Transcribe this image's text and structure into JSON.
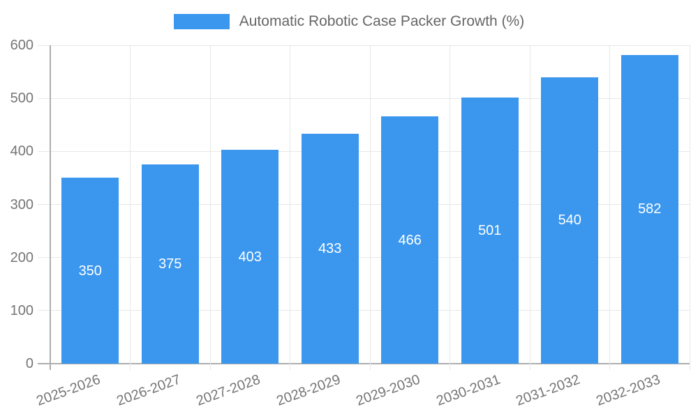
{
  "chart_data": {
    "type": "bar",
    "legend": "Automatic Robotic Case Packer Growth (%)",
    "legend_position": "top",
    "categories": [
      "2025-2026",
      "2026-2027",
      "2027-2028",
      "2028-2029",
      "2029-2030",
      "2030-2031",
      "2031-2032",
      "2032-2033"
    ],
    "values": [
      350,
      375,
      403,
      433,
      466,
      501,
      540,
      582
    ],
    "value_labels": [
      "350",
      "375",
      "403",
      "433",
      "466",
      "501",
      "540",
      "582"
    ],
    "yticks": [
      "0",
      "100",
      "200",
      "300",
      "400",
      "500",
      "600"
    ],
    "ytick_values": [
      0,
      100,
      200,
      300,
      400,
      500,
      600
    ],
    "ylim": [
      0,
      600
    ],
    "xlabel": "",
    "ylabel": "",
    "grid": true,
    "colors": {
      "bar": "#3B97EE",
      "bar_value_text": "#FFFFFF",
      "legend_text": "#666666",
      "axis_text": "#757575",
      "grid_line": "#E7E7E7",
      "axis_line": "#ADADAD"
    }
  }
}
